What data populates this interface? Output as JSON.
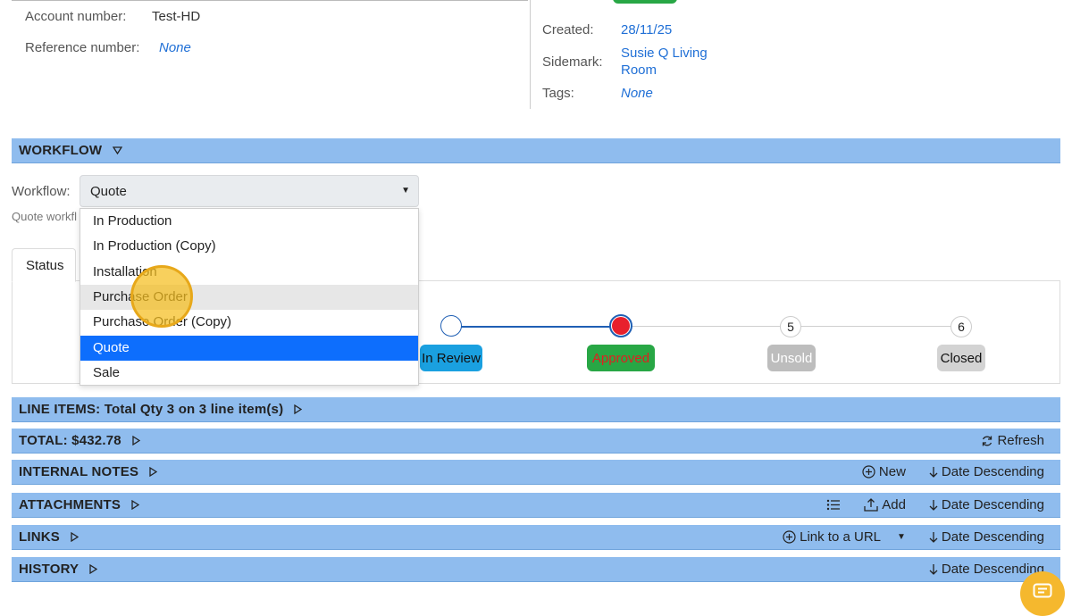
{
  "details": {
    "account_label": "Account number:",
    "account_value": "Test-HD",
    "reference_label": "Reference number:",
    "reference_value": "None",
    "created_label": "Created:",
    "created_value": "28/11/25",
    "sidemark_label": "Sidemark:",
    "sidemark_line1": "Susie Q Living",
    "sidemark_line2": "Room",
    "tags_label": "Tags:",
    "tags_value": "None"
  },
  "workflow_section": {
    "title": "WORKFLOW",
    "field_label": "Workflow:",
    "selected": "Quote",
    "hint_partial": "Quote workfl",
    "options": [
      "In Production",
      "In Production (Copy)",
      "Installation",
      "Purchase Order",
      "Purchase Order (Copy)",
      "Quote",
      "Sale"
    ],
    "hovered_option": "Purchase Order",
    "selected_option": "Quote"
  },
  "status_tab": {
    "label": "Status"
  },
  "stages": [
    {
      "label": "In Review",
      "state": "done"
    },
    {
      "label": "Approved",
      "state": "current"
    },
    {
      "number": "5",
      "label": "Unsold",
      "state": "pending"
    },
    {
      "number": "6",
      "label": "Closed",
      "state": "pending"
    }
  ],
  "sections": {
    "line_items": {
      "title": "LINE ITEMS: Total Qty 3 on 3 line item(s)"
    },
    "total": {
      "title": "TOTAL: $432.78",
      "refresh": "Refresh"
    },
    "internal_notes": {
      "title": "INTERNAL NOTES",
      "new": "New",
      "sort": "Date Descending"
    },
    "attachments": {
      "title": "ATTACHMENTS",
      "add": "Add",
      "sort": "Date Descending"
    },
    "links": {
      "title": "LINKS",
      "link_url": "Link to a URL",
      "sort": "Date Descending"
    },
    "history": {
      "title": "HISTORY",
      "sort": "Date Descending"
    }
  },
  "colors": {
    "section_bar": "#8fbcee",
    "link": "#1f6fd6",
    "in_review": "#1aa0e0",
    "approved": "#28a745",
    "approved_text": "#e02020",
    "unsold": "#bdbdbd",
    "closed": "#d3d3d3",
    "selected_option": "#0d6efd"
  },
  "icons": {
    "collapse": "triangle-down-icon",
    "expand": "triangle-right-icon",
    "refresh": "refresh-icon",
    "new": "plus-circle-icon",
    "sort": "arrow-down-icon",
    "list": "list-icon",
    "upload": "upload-icon",
    "chat": "chat-icon"
  }
}
